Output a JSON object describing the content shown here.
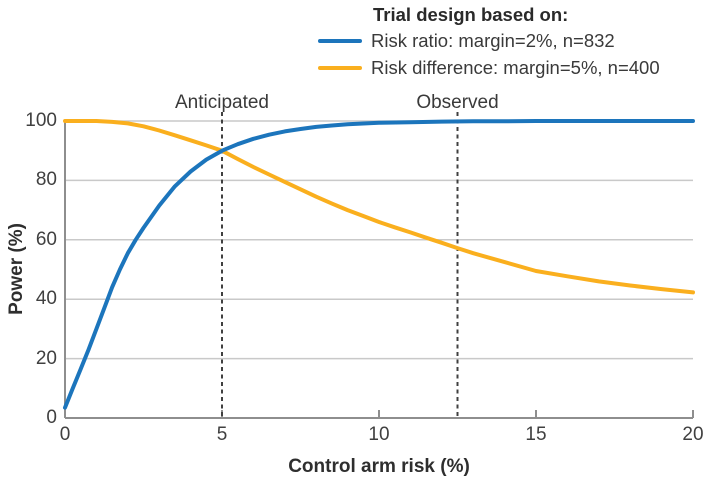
{
  "legend": {
    "title": "Trial design based on:"
  },
  "colors": {
    "grid": "#c9c9c9",
    "axis": "#8e8e8e",
    "annotation_line": "#404040",
    "text": "#3a3a3a"
  },
  "chart_data": {
    "type": "line",
    "title": "Trial design based on:",
    "xlabel": "Control arm risk (%)",
    "ylabel": "Power (%)",
    "xlim": [
      0,
      20
    ],
    "ylim": [
      0,
      100
    ],
    "x_ticks": [
      0,
      5,
      10,
      15,
      20
    ],
    "y_ticks": [
      0,
      20,
      40,
      60,
      80,
      100
    ],
    "grid": "horizontal",
    "legend_position": "top",
    "series": [
      {
        "name": "Risk ratio: margin=2%, n=832",
        "color": "#1c75bc",
        "x": [
          0,
          0.25,
          0.5,
          0.75,
          1,
          1.25,
          1.5,
          1.75,
          2,
          2.25,
          2.5,
          3,
          3.5,
          4,
          4.5,
          5,
          5.5,
          6,
          6.5,
          7,
          7.5,
          8,
          8.5,
          9,
          10,
          11,
          12,
          13,
          14,
          15,
          16,
          17,
          18,
          19,
          20
        ],
        "y": [
          3.5,
          10,
          16.5,
          23,
          30,
          37,
          44,
          50,
          55.5,
          60,
          64,
          71.5,
          78,
          83,
          87,
          90,
          92.2,
          94,
          95.4,
          96.5,
          97.3,
          98,
          98.5,
          98.9,
          99.4,
          99.6,
          99.8,
          99.9,
          99.9,
          100,
          100,
          100,
          100,
          100,
          100
        ]
      },
      {
        "name": "Risk difference: margin=5%, n=400",
        "color": "#faaf1e",
        "x": [
          0,
          0.5,
          1,
          1.5,
          2,
          2.5,
          3,
          3.5,
          4,
          4.5,
          5,
          5.5,
          6,
          6.5,
          7,
          7.5,
          8,
          8.5,
          9,
          9.5,
          10,
          10.5,
          11,
          11.5,
          12,
          12.5,
          13,
          14,
          15,
          16,
          17,
          18,
          19,
          20
        ],
        "y": [
          100,
          100,
          100,
          99.7,
          99.2,
          98.2,
          96.8,
          95.2,
          93.5,
          91.8,
          90,
          87.2,
          84.5,
          82,
          79.5,
          77,
          74.5,
          72.2,
          70,
          68,
          66,
          64.2,
          62.5,
          60.7,
          59,
          57.2,
          55.5,
          52.5,
          49.5,
          47.7,
          46,
          44.6,
          43.4,
          42.3
        ]
      }
    ],
    "annotations": [
      {
        "label": "Anticipated",
        "x": 5
      },
      {
        "label": "Observed",
        "x": 12.5
      }
    ]
  }
}
